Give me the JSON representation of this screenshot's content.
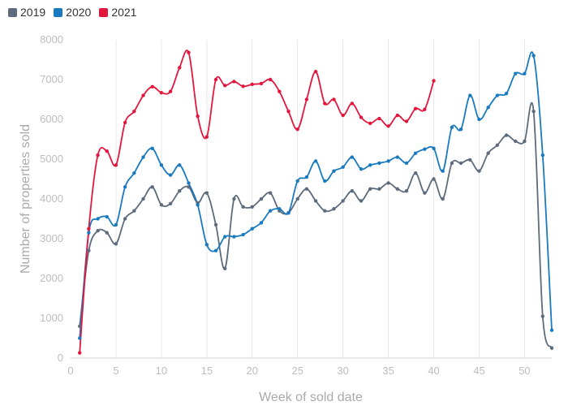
{
  "chart_data": {
    "type": "line",
    "title": "",
    "xlabel": "Week of sold date",
    "ylabel": "Number of properties sold",
    "xlim": [
      0,
      53
    ],
    "ylim": [
      0,
      8000
    ],
    "x_ticks": [
      0,
      5,
      10,
      15,
      20,
      25,
      30,
      35,
      40,
      45,
      50
    ],
    "y_ticks": [
      0,
      1000,
      2000,
      3000,
      4000,
      5000,
      6000,
      7000,
      8000
    ],
    "grid": "vertical",
    "legend": "top-left",
    "series": [
      {
        "name": "2019",
        "color": "#5d6b7d",
        "x": [
          1,
          2,
          3,
          4,
          5,
          6,
          7,
          8,
          9,
          10,
          11,
          12,
          13,
          14,
          15,
          16,
          17,
          18,
          19,
          20,
          21,
          22,
          23,
          24,
          25,
          26,
          27,
          28,
          29,
          30,
          31,
          32,
          33,
          34,
          35,
          36,
          37,
          38,
          39,
          40,
          41,
          42,
          43,
          44,
          45,
          46,
          47,
          48,
          49,
          50,
          51,
          52,
          53
        ],
        "values": [
          800,
          2700,
          3200,
          3150,
          2870,
          3500,
          3700,
          4000,
          4300,
          3850,
          3880,
          4200,
          4300,
          3900,
          4150,
          3350,
          2250,
          4000,
          3800,
          3800,
          4000,
          4150,
          3700,
          3650,
          4000,
          4250,
          3950,
          3700,
          3750,
          3950,
          4200,
          3950,
          4250,
          4250,
          4400,
          4250,
          4200,
          4650,
          4150,
          4500,
          4000,
          4900,
          4900,
          4980,
          4700,
          5150,
          5350,
          5600,
          5450,
          5450,
          6200,
          1050,
          250
        ]
      },
      {
        "name": "2020",
        "color": "#1a7abf",
        "x": [
          1,
          2,
          3,
          4,
          5,
          6,
          7,
          8,
          9,
          10,
          11,
          12,
          13,
          14,
          15,
          16,
          17,
          18,
          19,
          20,
          21,
          22,
          23,
          24,
          25,
          26,
          27,
          28,
          29,
          30,
          31,
          32,
          33,
          34,
          35,
          36,
          37,
          38,
          39,
          40,
          41,
          42,
          43,
          44,
          45,
          46,
          47,
          48,
          49,
          50,
          51,
          52,
          53
        ],
        "values": [
          500,
          3150,
          3500,
          3550,
          3350,
          4300,
          4650,
          5050,
          5270,
          4850,
          4600,
          4850,
          4400,
          3850,
          2850,
          2700,
          3050,
          3050,
          3100,
          3250,
          3400,
          3700,
          3750,
          3650,
          4450,
          4550,
          4950,
          4450,
          4700,
          4800,
          5050,
          4750,
          4850,
          4900,
          4950,
          5050,
          4900,
          5150,
          5250,
          5270,
          4700,
          5800,
          5750,
          6600,
          6000,
          6300,
          6600,
          6650,
          7150,
          7150,
          7600,
          5100,
          700
        ]
      },
      {
        "name": "2021",
        "color": "#e3173e",
        "x": [
          1,
          2,
          3,
          4,
          5,
          6,
          7,
          8,
          9,
          10,
          11,
          12,
          13,
          14,
          15,
          16,
          17,
          18,
          19,
          20,
          21,
          22,
          23,
          24,
          25,
          26,
          27,
          28,
          29,
          30,
          31,
          32,
          33,
          34,
          35,
          36,
          37,
          38,
          39,
          40
        ],
        "values": [
          130,
          3250,
          5100,
          5200,
          4850,
          5920,
          6200,
          6600,
          6820,
          6670,
          6700,
          7300,
          7680,
          6080,
          5560,
          7000,
          6850,
          6950,
          6830,
          6880,
          6900,
          7000,
          6700,
          6200,
          5750,
          6500,
          7200,
          6400,
          6500,
          6100,
          6400,
          6050,
          5900,
          6020,
          5830,
          6100,
          5950,
          6270,
          6250,
          6970
        ]
      }
    ]
  }
}
